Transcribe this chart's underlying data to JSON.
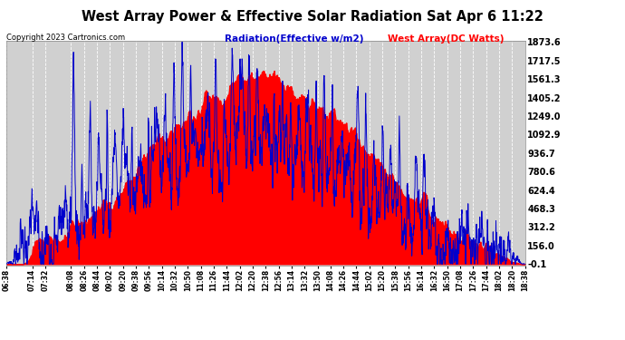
{
  "title": "West Array Power & Effective Solar Radiation Sat Apr 6 11:22",
  "copyright": "Copyright 2023 Cartronics.com",
  "legend_radiation": "Radiation(Effective w/m2)",
  "legend_west": "West Array(DC Watts)",
  "yticks": [
    1873.6,
    1717.5,
    1561.3,
    1405.2,
    1249.0,
    1092.9,
    936.7,
    780.6,
    624.4,
    468.3,
    312.2,
    156.0,
    -0.1
  ],
  "ymin": -0.1,
  "ymax": 1873.6,
  "bg_color": "#ffffff",
  "plot_bg_color": "#d0d0d0",
  "grid_color": "#ffffff",
  "radiation_color": "#0000cc",
  "west_fill_color": "#ff0000",
  "title_color": "#000000",
  "copyright_color": "#000000",
  "radiation_label_color": "#0000cc",
  "west_label_color": "#ff0000",
  "hours_start": 6.6333,
  "hours_end": 18.6333,
  "xtick_labels": [
    "06:38",
    "07:14",
    "07:32",
    "08:08",
    "08:26",
    "08:44",
    "09:02",
    "09:20",
    "09:38",
    "09:56",
    "10:14",
    "10:32",
    "10:50",
    "11:08",
    "11:26",
    "11:44",
    "12:02",
    "12:20",
    "12:38",
    "12:56",
    "13:14",
    "13:32",
    "13:50",
    "14:08",
    "14:26",
    "14:44",
    "15:02",
    "15:20",
    "15:38",
    "15:56",
    "16:14",
    "16:32",
    "16:50",
    "17:08",
    "17:26",
    "17:44",
    "18:02",
    "18:20",
    "18:38"
  ],
  "xtick_positions": [
    6.6333,
    7.2333,
    7.5333,
    8.1333,
    8.4333,
    8.7333,
    9.0333,
    9.3333,
    9.6333,
    9.9333,
    10.2333,
    10.5333,
    10.8333,
    11.1333,
    11.4333,
    11.7333,
    12.0333,
    12.3333,
    12.6333,
    12.9333,
    13.2333,
    13.5333,
    13.8333,
    14.1333,
    14.4333,
    14.7333,
    15.0333,
    15.3333,
    15.6333,
    15.9333,
    16.2333,
    16.5333,
    16.8333,
    17.1333,
    17.4333,
    17.7333,
    18.0333,
    18.3333,
    18.6333
  ]
}
